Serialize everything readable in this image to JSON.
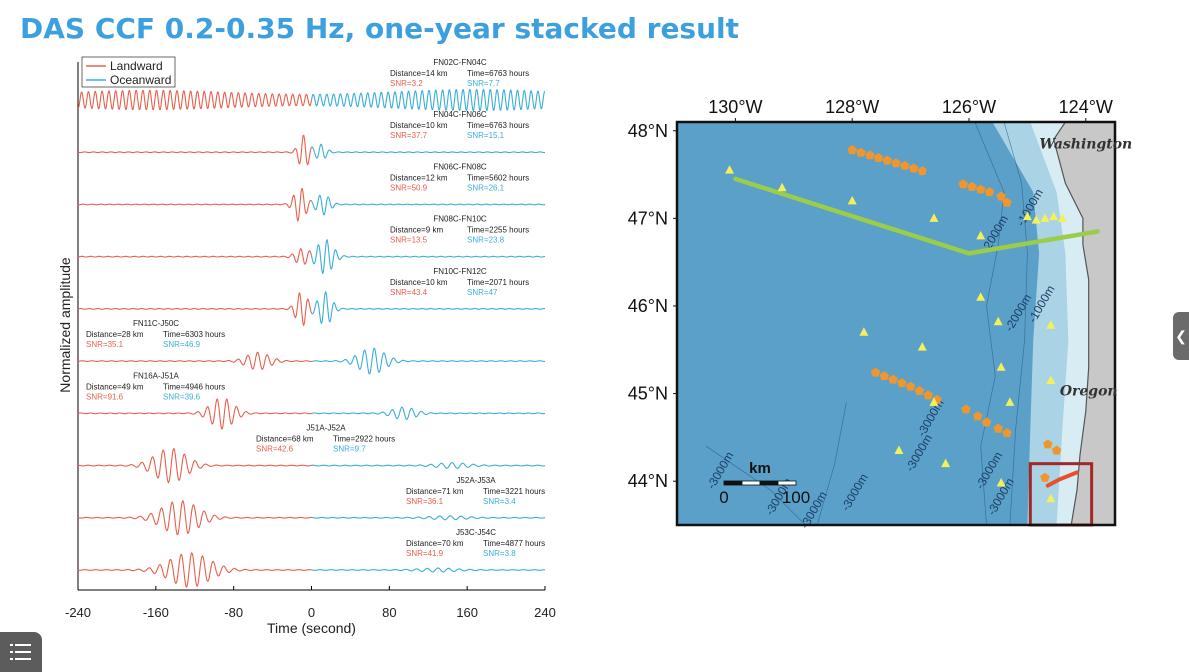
{
  "slide": {
    "title": "DAS CCF 0.2-0.35 Hz, one-year stacked result"
  },
  "chart_data": [
    {
      "type": "line",
      "title": "",
      "xlabel": "Time (second)",
      "ylabel": "Normalized amplitude",
      "xlim": [
        -240,
        240
      ],
      "xticks": [
        "-240",
        "-160",
        "-80",
        "0",
        "80",
        "160",
        "240"
      ],
      "legend": {
        "placement": "top-left",
        "entries": [
          {
            "name": "Landward",
            "color": "#e8604c"
          },
          {
            "name": "Oceanward",
            "color": "#3aaed8"
          }
        ]
      },
      "traces": [
        {
          "pair": "FN02C-FN04C",
          "distance": "Distance=14 km",
          "time": "Time=6763 hours",
          "snr_land": "SNR=3.2",
          "snr_ocean": "SNR=7.7",
          "label_side": "right",
          "packets": [
            {
              "t": -170,
              "w": 150,
              "a": 0.55,
              "p": 7
            },
            {
              "t": 170,
              "w": 150,
              "a": 0.6,
              "p": 7
            }
          ]
        },
        {
          "pair": "FN04C-FN06C",
          "distance": "Distance=10 km",
          "time": "Time=6763 hours",
          "snr_land": "SNR=37.7",
          "snr_ocean": "SNR=15.1",
          "label_side": "right",
          "packets": [
            {
              "t": -8,
              "w": 7,
              "a": 1.0,
              "p": 9
            },
            {
              "t": 10,
              "w": 7,
              "a": 0.45,
              "p": 9
            }
          ]
        },
        {
          "pair": "FN06C-FN08C",
          "distance": "Distance=12 km",
          "time": "Time=5602 hours",
          "snr_land": "SNR=50.9",
          "snr_ocean": "SNR=26.1",
          "label_side": "right",
          "packets": [
            {
              "t": -12,
              "w": 8,
              "a": 1.0,
              "p": 9
            },
            {
              "t": 12,
              "w": 9,
              "a": 0.6,
              "p": 9
            }
          ]
        },
        {
          "pair": "FN08C-FN10C",
          "distance": "Distance=9 km",
          "time": "Time=2255 hours",
          "snr_land": "SNR=13.5",
          "snr_ocean": "SNR=23.8",
          "label_side": "right",
          "packets": [
            {
              "t": -10,
              "w": 9,
              "a": 0.45,
              "p": 9
            },
            {
              "t": 14,
              "w": 11,
              "a": 1.0,
              "p": 9
            }
          ]
        },
        {
          "pair": "FN10C-FN12C",
          "distance": "Distance=10 km",
          "time": "Time=2071 hours",
          "snr_land": "SNR=43.4",
          "snr_ocean": "SNR=47",
          "label_side": "right",
          "packets": [
            {
              "t": -10,
              "w": 8,
              "a": 1.0,
              "p": 9
            },
            {
              "t": 14,
              "w": 9,
              "a": 1.0,
              "p": 9
            }
          ]
        },
        {
          "pair": "FN11C-J50C",
          "distance": "Distance=28 km",
          "time": "Time=6303 hours",
          "snr_land": "SNR=35.1",
          "snr_ocean": "SNR=46.9",
          "label_side": "left",
          "packets": [
            {
              "t": -55,
              "w": 16,
              "a": 0.5,
              "p": 10
            },
            {
              "t": 62,
              "w": 18,
              "a": 0.75,
              "p": 10
            }
          ]
        },
        {
          "pair": "FN16A-J51A",
          "distance": "Distance=49 km",
          "time": "Time=4946 hours",
          "snr_land": "SNR=91.6",
          "snr_ocean": "SNR=39.6",
          "label_side": "left",
          "packets": [
            {
              "t": -92,
              "w": 16,
              "a": 0.9,
              "p": 10
            },
            {
              "t": 95,
              "w": 16,
              "a": 0.35,
              "p": 10
            }
          ]
        },
        {
          "pair": "J51A-J52A",
          "distance": "Distance=68 km",
          "time": "Time=2922 hours",
          "snr_land": "SNR=42.6",
          "snr_ocean": "SNR=9.7",
          "label_side": "center",
          "packets": [
            {
              "t": -145,
              "w": 22,
              "a": 1.0,
              "p": 11
            },
            {
              "t": 145,
              "w": 22,
              "a": 0.15,
              "p": 11
            }
          ]
        },
        {
          "pair": "J52A-J53A",
          "distance": "Distance=71 km",
          "time": "Time=3221 hours",
          "snr_land": "SNR=36.1",
          "snr_ocean": "SNR=3.4",
          "label_side": "right",
          "packets": [
            {
              "t": -135,
              "w": 25,
              "a": 1.0,
              "p": 11
            },
            {
              "t": 140,
              "w": 25,
              "a": 0.1,
              "p": 11
            }
          ]
        },
        {
          "pair": "J53C-J54C",
          "distance": "Distance=70 km",
          "time": "Time=4877 hours",
          "snr_land": "SNR=41.9",
          "snr_ocean": "SNR=3.8",
          "label_side": "right",
          "packets": [
            {
              "t": -125,
              "w": 28,
              "a": 1.0,
              "p": 11
            },
            {
              "t": 130,
              "w": 25,
              "a": 0.1,
              "p": 11
            }
          ]
        }
      ]
    },
    {
      "type": "scatter",
      "title": "",
      "xlabel": "",
      "ylabel": "",
      "xlim": [
        -131,
        -123.5
      ],
      "ylim": [
        43.5,
        48.1
      ],
      "xticks": [
        {
          "lon": -130,
          "label": "130°W"
        },
        {
          "lon": -128,
          "label": "128°W"
        },
        {
          "lon": -126,
          "label": "126°W"
        },
        {
          "lon": -124,
          "label": "124°W"
        }
      ],
      "yticks": [
        {
          "lat": 48,
          "label": "48°N"
        },
        {
          "lat": 47,
          "label": "47°N"
        },
        {
          "lat": 46,
          "label": "46°N"
        },
        {
          "lat": 45,
          "label": "45°N"
        },
        {
          "lat": 44,
          "label": "44°N"
        }
      ],
      "place_labels": [
        {
          "text": "Washington",
          "lon": -124.0,
          "lat": 47.8
        },
        {
          "text": "Oregon",
          "lon": -123.95,
          "lat": 44.98
        }
      ],
      "contour_labels": [
        {
          "text": "-1000m",
          "lon": -124.9,
          "lat": 47.1
        },
        {
          "text": "-2000m",
          "lon": -125.5,
          "lat": 46.8
        },
        {
          "text": "-2000m",
          "lon": -125.1,
          "lat": 45.9
        },
        {
          "text": "-1000m",
          "lon": -124.7,
          "lat": 46.0
        },
        {
          "text": "-3000m",
          "lon": -126.6,
          "lat": 44.7
        },
        {
          "text": "-3000m",
          "lon": -125.6,
          "lat": 44.1
        },
        {
          "text": "-3000m",
          "lon": -125.4,
          "lat": 43.8
        },
        {
          "text": "-3000m",
          "lon": -130.2,
          "lat": 44.1
        },
        {
          "text": "-3000m",
          "lon": -129.2,
          "lat": 43.8
        },
        {
          "text": "-3000m",
          "lon": -128.6,
          "lat": 43.65
        },
        {
          "text": "-3000m",
          "lon": -127.9,
          "lat": 43.85
        },
        {
          "text": "-3000m",
          "lon": -126.8,
          "lat": 44.3
        }
      ],
      "scale_bar": {
        "title": "km",
        "min_label": "0",
        "max_label": "100"
      },
      "colors": {
        "ocean": "#5aa0c8",
        "shelf": "#b8dcea",
        "land": "#c8c8c8",
        "cable": "#9acd4a",
        "ocean_sites": "#f0962e",
        "land_stations": "#f4f05a",
        "box": "#a02828",
        "study_cable": "#e8502c"
      },
      "green_cable": [
        [
          -130.0,
          47.45
        ],
        [
          -126.0,
          46.6
        ],
        [
          -123.8,
          46.85
        ]
      ],
      "orange_sites": [
        [
          -128.0,
          47.78
        ],
        [
          -127.85,
          47.75
        ],
        [
          -127.7,
          47.72
        ],
        [
          -127.55,
          47.69
        ],
        [
          -127.4,
          47.66
        ],
        [
          -127.25,
          47.63
        ],
        [
          -127.1,
          47.6
        ],
        [
          -126.95,
          47.57
        ],
        [
          -126.8,
          47.54
        ],
        [
          -126.1,
          47.39
        ],
        [
          -125.95,
          47.36
        ],
        [
          -125.8,
          47.33
        ],
        [
          -125.65,
          47.3
        ],
        [
          -125.45,
          47.25
        ],
        [
          -125.35,
          47.18
        ],
        [
          -127.6,
          45.24
        ],
        [
          -127.45,
          45.2
        ],
        [
          -127.3,
          45.16
        ],
        [
          -127.15,
          45.12
        ],
        [
          -127.0,
          45.08
        ],
        [
          -126.85,
          45.03
        ],
        [
          -126.7,
          44.98
        ],
        [
          -126.55,
          44.93
        ],
        [
          -126.05,
          44.82
        ],
        [
          -125.85,
          44.74
        ],
        [
          -125.7,
          44.67
        ],
        [
          -125.5,
          44.6
        ],
        [
          -125.35,
          44.55
        ],
        [
          -124.65,
          44.42
        ],
        [
          -124.5,
          44.35
        ],
        [
          -124.7,
          44.04
        ]
      ],
      "yellow_stations": [
        [
          -130.1,
          47.55
        ],
        [
          -129.2,
          47.35
        ],
        [
          -128.0,
          47.2
        ],
        [
          -126.6,
          47.0
        ],
        [
          -125.8,
          46.8
        ],
        [
          -125.0,
          47.02
        ],
        [
          -124.85,
          46.98
        ],
        [
          -124.7,
          47.0
        ],
        [
          -124.55,
          47.02
        ],
        [
          -124.4,
          47.0
        ],
        [
          -125.8,
          46.1
        ],
        [
          -125.5,
          45.82
        ],
        [
          -124.6,
          45.78
        ],
        [
          -127.8,
          45.7
        ],
        [
          -126.8,
          45.53
        ],
        [
          -125.45,
          45.3
        ],
        [
          -124.6,
          45.15
        ],
        [
          -126.6,
          44.9
        ],
        [
          -125.3,
          44.9
        ],
        [
          -127.2,
          44.35
        ],
        [
          -126.4,
          44.2
        ],
        [
          -125.45,
          43.98
        ],
        [
          -124.6,
          43.8
        ]
      ],
      "study_cable": [
        [
          -124.65,
          43.95
        ],
        [
          -124.45,
          44.02
        ],
        [
          -124.15,
          44.1
        ]
      ],
      "box": {
        "lon": [
          -124.95,
          -123.9
        ],
        "lat": [
          43.5,
          44.2
        ]
      }
    }
  ],
  "ui": {
    "side_tab_icon": "chevron-left-icon",
    "menu_icon": "list-menu-icon"
  }
}
